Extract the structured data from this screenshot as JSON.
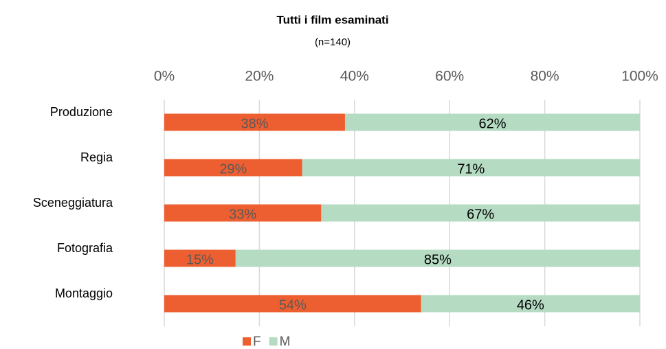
{
  "chart_data": {
    "type": "stacked-bar-horizontal",
    "title": "Tutti i film esaminati",
    "subtitle": "(n=140)",
    "categories": [
      "Produzione",
      "Regia",
      "Sceneggiatura",
      "Fotografia",
      "Montaggio"
    ],
    "series": [
      {
        "name": "F",
        "color": "#ed5f30",
        "label_color": "#595959",
        "values": [
          38,
          29,
          33,
          15,
          54
        ],
        "value_labels": [
          "38%",
          "29%",
          "33%",
          "15%",
          "54%"
        ]
      },
      {
        "name": "M",
        "color": "#b5dbc3",
        "label_color": "#000000",
        "values": [
          62,
          71,
          67,
          85,
          46
        ],
        "value_labels": [
          "62%",
          "71%",
          "67%",
          "85%",
          "46%"
        ]
      }
    ],
    "xlim": [
      0,
      100
    ],
    "xticks": [
      {
        "value": 0,
        "label": "0%"
      },
      {
        "value": 20,
        "label": "20%"
      },
      {
        "value": 40,
        "label": "40%"
      },
      {
        "value": 60,
        "label": "60%"
      },
      {
        "value": 80,
        "label": "80%"
      },
      {
        "value": 100,
        "label": "100%"
      }
    ],
    "grid": true,
    "legend": "bottom"
  }
}
